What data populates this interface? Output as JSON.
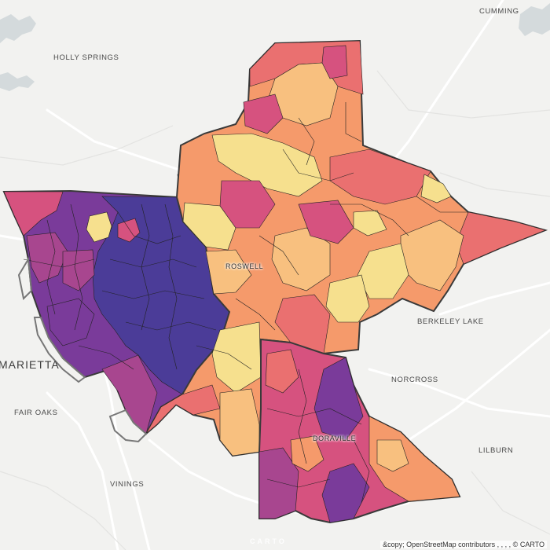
{
  "map": {
    "attribution": "&copy; OpenStreetMap contributors , , , ,  © CARTO",
    "watermark": "CARTO",
    "labels": {
      "cumming": "CUMMING",
      "holly_springs": "HOLLY SPRINGS",
      "roswell": "ROSWELL",
      "berkeley_lake": "BERKELEY LAKE",
      "marietta": "MARIETTA",
      "norcross": "NORCROSS",
      "fair_oaks": "FAIR OAKS",
      "doraville": "DORAVILLE",
      "lilburn": "LILBURN",
      "vinings": "VININGS"
    },
    "colors": {
      "background": "#f2f2f0",
      "water": "#d4dadc",
      "road": "#ffffff",
      "boundary": "#3a3a3a",
      "palette": [
        "#4b3c98",
        "#7a3b9a",
        "#a8468f",
        "#d6527f",
        "#ea7070",
        "#f59a6b",
        "#f8c07f",
        "#f6e08e"
      ]
    }
  }
}
